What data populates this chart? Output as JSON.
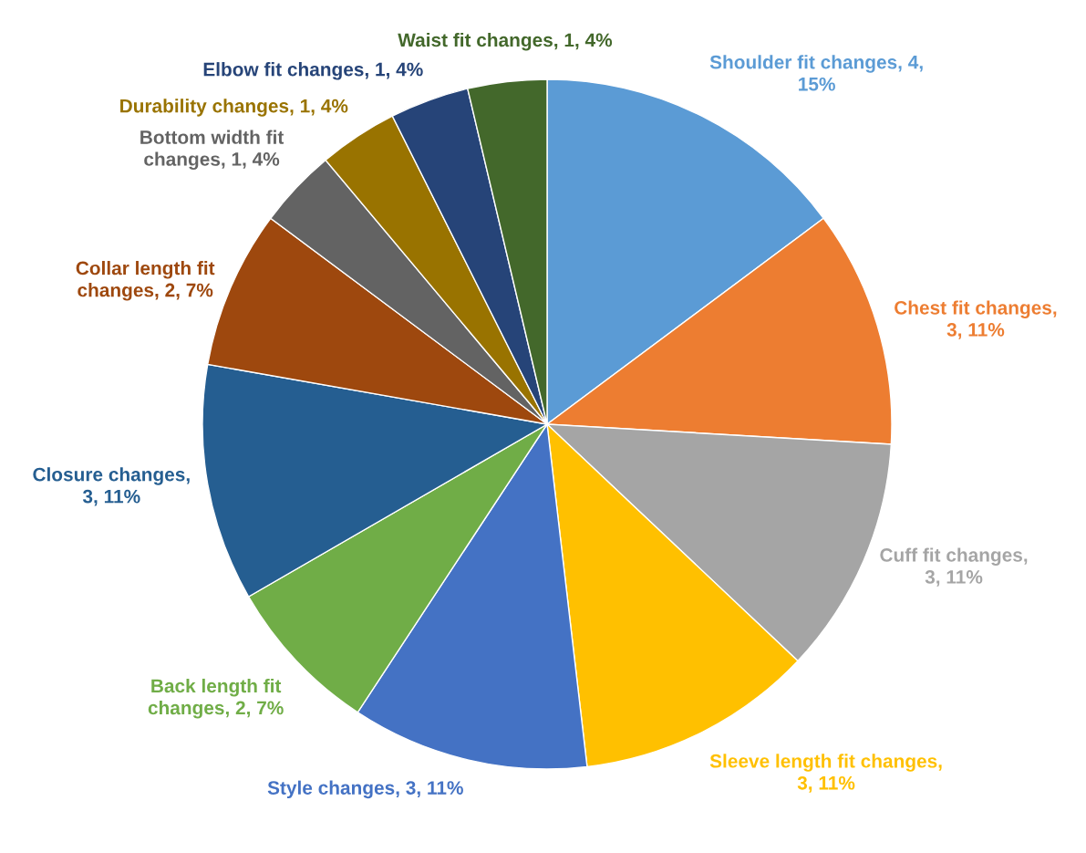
{
  "chart_data": {
    "type": "pie",
    "categories": [
      "Shoulder fit changes, 4, 15%",
      "Chest fit changes, 3, 11%",
      "Cuff fit changes, 3, 11%",
      "Sleeve length fit changes, 3, 11%",
      "Style changes, 3, 11%",
      "Back length fit changes, 2, 7%",
      "Closure changes, 3, 11%",
      "Collar length fit changes, 2, 7%",
      "Bottom width fit changes, 1, 4%",
      "Durability changes, 1, 4%",
      "Elbow fit changes, 1, 4%",
      "Waist fit changes, 1, 4%"
    ],
    "values": [
      4,
      3,
      3,
      3,
      3,
      2,
      3,
      2,
      1,
      1,
      1,
      1
    ],
    "colors": [
      "#5b9bd5",
      "#ed7d31",
      "#a5a5a5",
      "#ffc000",
      "#4472c4",
      "#70ad47",
      "#255e91",
      "#9e480e",
      "#636363",
      "#997300",
      "#264478",
      "#43682b"
    ],
    "legend": false
  }
}
